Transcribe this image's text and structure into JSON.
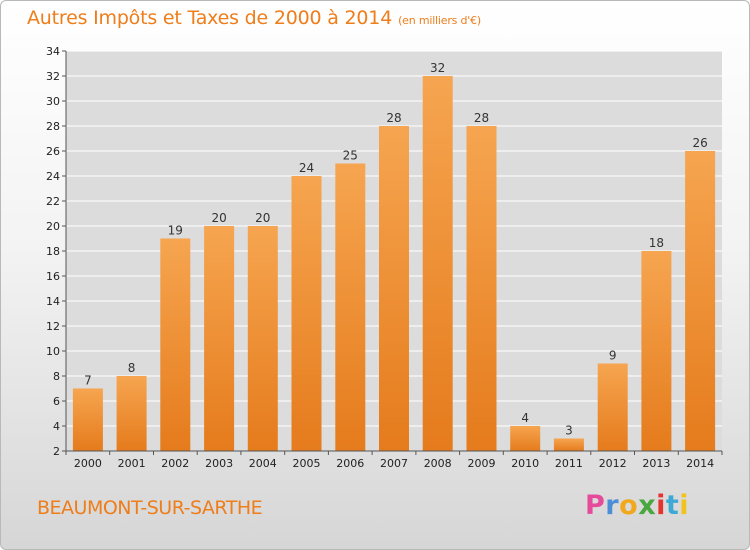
{
  "header": {
    "title": "Autres Impôts et Taxes de 2000 à 2014",
    "unit": "(en milliers d'€)"
  },
  "footer": {
    "commune": "BEAUMONT-SUR-SARTHE",
    "logo": "Proxiti"
  },
  "colors": {
    "accent": "#ee7d1a",
    "bar_top": "#f6a550",
    "bar_bottom": "#e57b1c",
    "grid": "#ffffff"
  },
  "chart_data": {
    "type": "bar",
    "title": "Autres Impôts et Taxes de 2000 à 2014",
    "subtitle": "(en milliers d'€)",
    "categories": [
      "2000",
      "2001",
      "2002",
      "2003",
      "2004",
      "2005",
      "2006",
      "2007",
      "2008",
      "2009",
      "2010",
      "2011",
      "2012",
      "2013",
      "2014"
    ],
    "values": [
      7,
      8,
      19,
      20,
      20,
      24,
      25,
      28,
      32,
      28,
      4,
      3,
      9,
      18,
      26
    ],
    "ylim": [
      2,
      34
    ],
    "yticks": [
      2,
      4,
      6,
      8,
      10,
      12,
      14,
      16,
      18,
      20,
      22,
      24,
      26,
      28,
      30,
      32,
      34
    ],
    "grid": true,
    "data_labels": true,
    "legend": false
  }
}
